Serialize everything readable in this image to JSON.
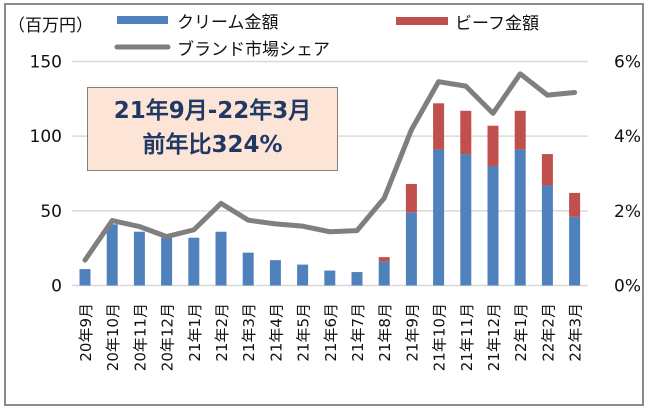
{
  "chart_data": {
    "type": "bar+line",
    "y_unit_label": "（百万円）",
    "categories": [
      "20年9月",
      "20年10月",
      "20年11月",
      "20年12月",
      "21年1月",
      "21年2月",
      "21年3月",
      "21年4月",
      "21年5月",
      "21年6月",
      "21年7月",
      "21年8月",
      "21年9月",
      "21年10月",
      "21年11月",
      "21年12月",
      "22年1月",
      "22年2月",
      "22年3月"
    ],
    "series": [
      {
        "name": "クリーム金額",
        "type": "stacked-bar",
        "axis": "left",
        "color": "#4f81bd",
        "values": [
          11,
          41,
          36,
          32,
          32,
          36,
          22,
          17,
          14,
          10,
          9,
          16,
          49,
          91,
          88,
          80,
          91,
          67,
          46
        ]
      },
      {
        "name": "ビーフ金額",
        "type": "stacked-bar",
        "axis": "left",
        "color": "#c0504d",
        "values": [
          0,
          0,
          0,
          0,
          0,
          0,
          0,
          0,
          0,
          0,
          0,
          3,
          19,
          31,
          29,
          27,
          26,
          21,
          16
        ]
      },
      {
        "name": "ブランド市場シェア",
        "type": "line",
        "axis": "right",
        "color": "#7f7f7f",
        "values": [
          0.68,
          1.74,
          1.58,
          1.31,
          1.49,
          2.2,
          1.75,
          1.65,
          1.59,
          1.44,
          1.47,
          2.34,
          4.17,
          5.46,
          5.34,
          4.61,
          5.67,
          5.1,
          5.17
        ]
      }
    ],
    "left_axis": {
      "ylim": [
        0,
        150
      ],
      "ticks": [
        "0",
        "50",
        "100",
        "150"
      ],
      "tick_values": [
        0,
        50,
        100,
        150
      ]
    },
    "right_axis": {
      "ylim": [
        0,
        6
      ],
      "ticks": [
        "0%",
        "2%",
        "4%",
        "6%"
      ],
      "tick_values": [
        0,
        2,
        4,
        6
      ]
    },
    "grid": true,
    "legend_position": "top",
    "annotation": {
      "line1": "21年9月-22年3月",
      "line2": "前年比324%"
    },
    "colors": {
      "grid": "#d9d9d9",
      "frame": "#8c8c8c",
      "annotation_bg": "#fce4d6",
      "annotation_text": "#1f3864"
    }
  }
}
